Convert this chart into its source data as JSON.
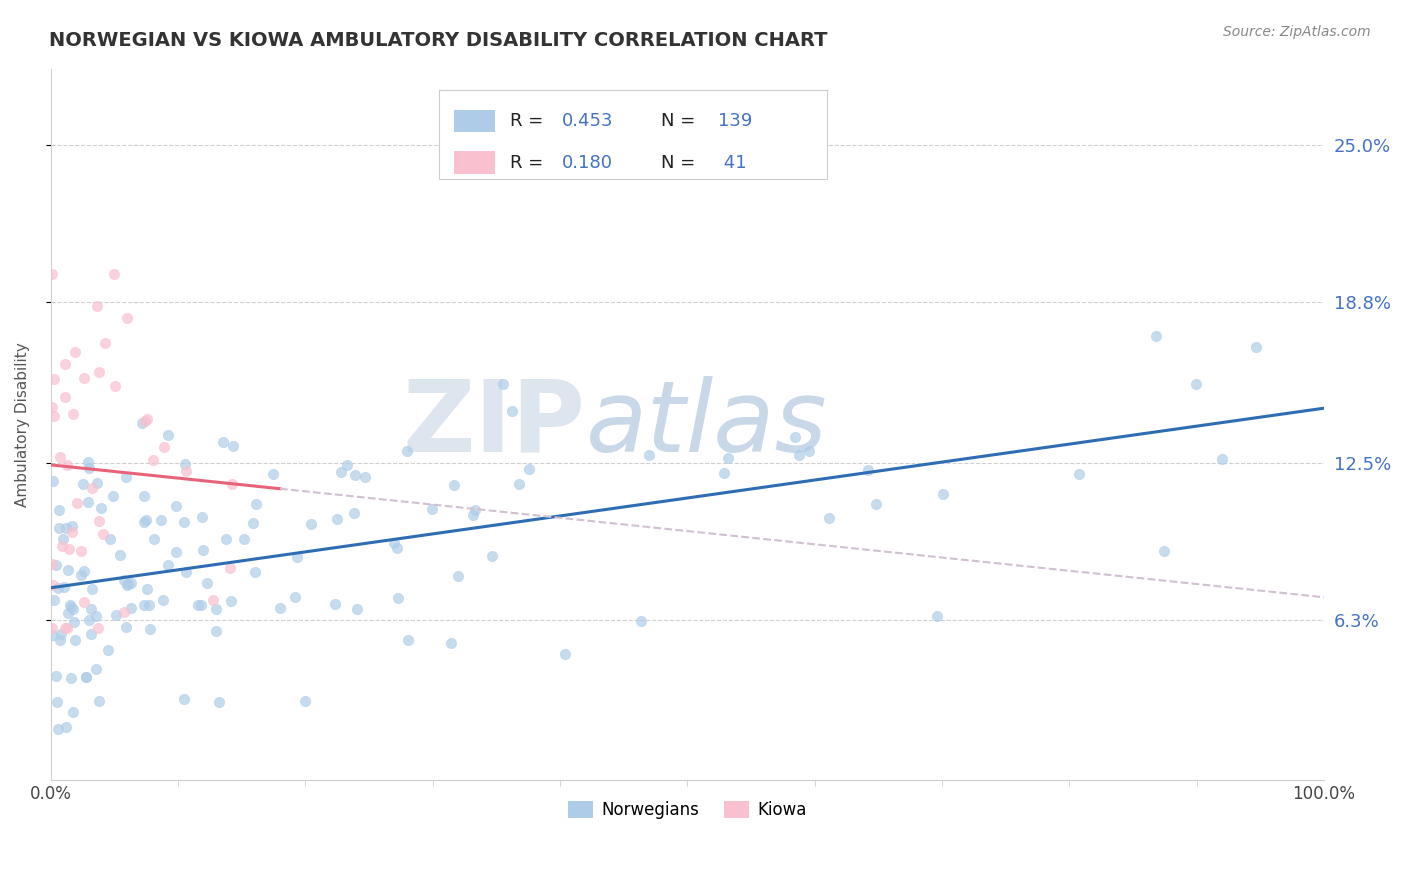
{
  "title": "NORWEGIAN VS KIOWA AMBULATORY DISABILITY CORRELATION CHART",
  "source_text": "Source: ZipAtlas.com",
  "ylabel": "Ambulatory Disability",
  "watermark_zip": "ZIP",
  "watermark_atlas": "atlas",
  "xlim": [
    0.0,
    1.0
  ],
  "ylim": [
    0.0,
    0.28
  ],
  "yticks": [
    0.063,
    0.125,
    0.188,
    0.25
  ],
  "ytick_labels": [
    "6.3%",
    "12.5%",
    "18.8%",
    "25.0%"
  ],
  "xtick_labels": [
    "0.0%",
    "100.0%"
  ],
  "norwegian_color": "#aecce8",
  "norwegian_edge": "#aecce8",
  "kiowa_color": "#f9c0d0",
  "kiowa_edge": "#f9c0d0",
  "trend_norwegian_color": "#2e6db4",
  "trend_kiowa_color": "#e8637a",
  "dashed_line_color": "#d0c0d0",
  "legend_r1": "R = 0.453",
  "legend_n1": "N = 139",
  "legend_r2": "R = 0.180",
  "legend_n2": "N =  41",
  "legend_label1": "Norwegians",
  "legend_label2": "Kiowa",
  "legend_text_color": "#4472c4",
  "legend_label_color": "#333333",
  "title_color": "#333333",
  "source_color": "#888888",
  "ylabel_color": "#555555",
  "grid_color": "#d0d0d0",
  "spine_color": "#d0d0d0"
}
